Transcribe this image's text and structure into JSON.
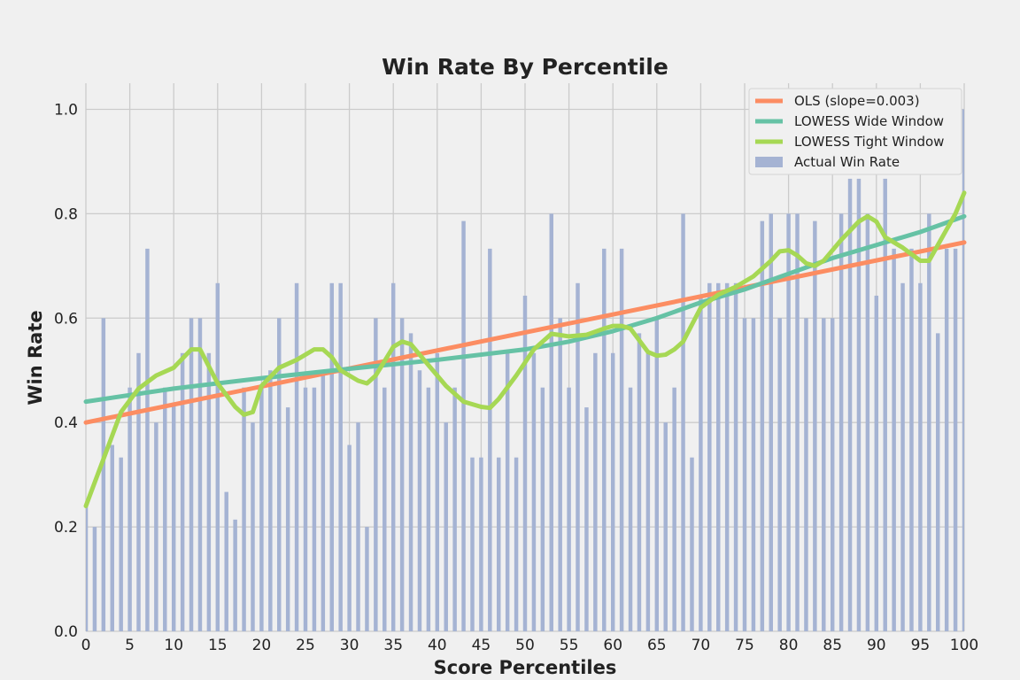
{
  "chart_data": {
    "type": "bar",
    "title": "Win Rate By Percentile",
    "xlabel": "Score Percentiles",
    "ylabel": "Win Rate",
    "xlim": [
      0,
      100
    ],
    "ylim": [
      0.0,
      1.05
    ],
    "x_ticks": [
      "0",
      "5",
      "10",
      "15",
      "20",
      "25",
      "30",
      "35",
      "40",
      "45",
      "50",
      "55",
      "60",
      "65",
      "70",
      "75",
      "80",
      "85",
      "90",
      "95",
      "100"
    ],
    "y_ticks": [
      "0.0",
      "0.2",
      "0.4",
      "0.6",
      "0.8",
      "1.0"
    ],
    "grid": true,
    "legend_position": "top-right",
    "bar_series": {
      "name": "Actual Win Rate",
      "color": "#a5b3d3",
      "x": [
        0,
        1,
        2,
        3,
        4,
        5,
        6,
        7,
        8,
        9,
        10,
        11,
        12,
        13,
        14,
        15,
        16,
        17,
        18,
        19,
        20,
        21,
        22,
        23,
        24,
        25,
        26,
        27,
        28,
        29,
        30,
        31,
        32,
        33,
        34,
        35,
        36,
        37,
        38,
        39,
        40,
        41,
        42,
        43,
        44,
        45,
        46,
        47,
        48,
        49,
        50,
        51,
        52,
        53,
        54,
        55,
        56,
        57,
        58,
        59,
        60,
        61,
        62,
        63,
        64,
        65,
        66,
        67,
        68,
        69,
        70,
        71,
        72,
        73,
        74,
        75,
        76,
        77,
        78,
        79,
        80,
        81,
        82,
        83,
        84,
        85,
        86,
        87,
        88,
        89,
        90,
        91,
        92,
        93,
        94,
        95,
        96,
        97,
        98,
        99,
        100
      ],
      "values": [
        0.25,
        0.2,
        0.6,
        0.357,
        0.333,
        0.467,
        0.533,
        0.733,
        0.4,
        0.467,
        0.438,
        0.533,
        0.6,
        0.6,
        0.533,
        0.667,
        0.267,
        0.214,
        0.467,
        0.4,
        0.467,
        0.5,
        0.6,
        0.429,
        0.667,
        0.467,
        0.467,
        0.5,
        0.667,
        0.667,
        0.357,
        0.4,
        0.2,
        0.6,
        0.467,
        0.667,
        0.6,
        0.571,
        0.5,
        0.467,
        0.533,
        0.4,
        0.467,
        0.786,
        0.333,
        0.333,
        0.733,
        0.333,
        0.533,
        0.333,
        0.643,
        0.533,
        0.467,
        0.8,
        0.6,
        0.467,
        0.667,
        0.429,
        0.533,
        0.733,
        0.533,
        0.733,
        0.467,
        0.571,
        0.533,
        0.6,
        0.4,
        0.467,
        0.8,
        0.333,
        0.643,
        0.667,
        0.667,
        0.667,
        0.667,
        0.6,
        0.6,
        0.786,
        0.8,
        0.6,
        0.8,
        0.8,
        0.6,
        0.786,
        0.6,
        0.6,
        0.8,
        0.867,
        0.867,
        0.8,
        0.643,
        0.867,
        0.733,
        0.667,
        0.733,
        0.667,
        0.8,
        0.571,
        0.733,
        0.733,
        1.0
      ]
    },
    "series": [
      {
        "name": "OLS (slope=0.003)",
        "color": "#fc8d62",
        "x": [
          0,
          100
        ],
        "values": [
          0.4,
          0.745
        ]
      },
      {
        "name": "LOWESS Wide Window",
        "color": "#66c2a5",
        "x": [
          0,
          10,
          20,
          30,
          40,
          50,
          55,
          60,
          65,
          70,
          75,
          80,
          85,
          90,
          95,
          100
        ],
        "values": [
          0.44,
          0.465,
          0.485,
          0.503,
          0.52,
          0.54,
          0.555,
          0.575,
          0.6,
          0.63,
          0.655,
          0.685,
          0.715,
          0.74,
          0.765,
          0.795
        ]
      },
      {
        "name": "LOWESS Tight Window",
        "color": "#a6d854",
        "x": [
          0,
          2,
          4,
          6,
          8,
          10,
          12,
          13,
          15,
          17,
          18,
          19,
          20,
          22,
          24,
          26,
          27,
          28,
          29,
          31,
          32,
          33,
          35,
          36,
          37,
          39,
          41,
          43,
          45,
          46,
          47,
          49,
          51,
          53,
          55,
          57,
          59,
          60,
          61,
          62,
          64,
          65,
          66,
          67,
          68,
          70,
          72,
          74,
          76,
          78,
          79,
          80,
          81,
          82,
          83,
          84,
          86,
          88,
          89,
          90,
          91,
          93,
          95,
          96,
          97,
          98,
          99,
          100
        ],
        "values": [
          0.24,
          0.33,
          0.42,
          0.465,
          0.49,
          0.505,
          0.54,
          0.54,
          0.475,
          0.43,
          0.415,
          0.42,
          0.47,
          0.505,
          0.52,
          0.54,
          0.54,
          0.525,
          0.5,
          0.48,
          0.475,
          0.49,
          0.545,
          0.555,
          0.55,
          0.51,
          0.47,
          0.44,
          0.43,
          0.428,
          0.445,
          0.49,
          0.54,
          0.57,
          0.565,
          0.568,
          0.58,
          0.585,
          0.585,
          0.58,
          0.535,
          0.528,
          0.53,
          0.54,
          0.555,
          0.62,
          0.645,
          0.66,
          0.68,
          0.71,
          0.728,
          0.73,
          0.72,
          0.705,
          0.7,
          0.71,
          0.75,
          0.785,
          0.795,
          0.785,
          0.755,
          0.735,
          0.71,
          0.71,
          0.74,
          0.77,
          0.8,
          0.84
        ]
      }
    ]
  }
}
